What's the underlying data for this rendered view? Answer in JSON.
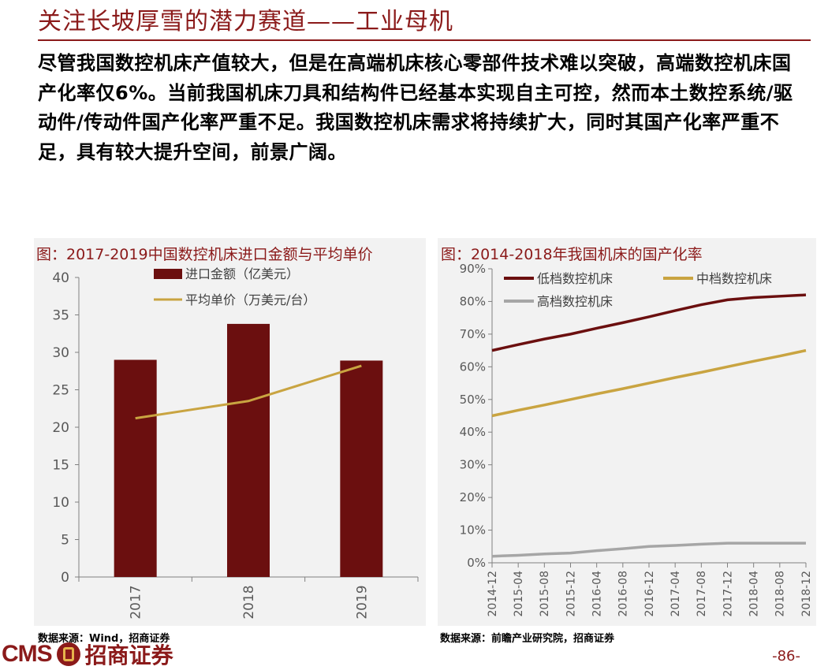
{
  "header": {
    "title": "关注长坡厚雪的潜力赛道——工业母机"
  },
  "body": {
    "paragraph": "尽管我国数控机床产值较大，但是在高端机床核心零部件技术难以突破，高端数控机床国产化率仅6%。当前我国机床刀具和结构件已经基本实现自主可控，然而本土数控系统/驱动件/传动件国产化率严重不足。我国数控机床需求将持续扩大，同时其国产化率严重不足，具有较大提升空间，前景广阔。"
  },
  "left_chart": {
    "title": "图：2017-2019中国数控机床进口金额与平均单价",
    "source": "数据来源：Wind，招商证券"
  },
  "right_chart": {
    "title": "图：2014-2018年我国机床的国产化率",
    "source": "数据来源：前瞻产业研究院，招商证券"
  },
  "footer": {
    "logo_text": "CMS",
    "logo_cn": "招商证券",
    "page_number": "-86-"
  },
  "colors": {
    "brand": "#8b1a1a",
    "gold": "#c9a441",
    "gray": "#a6a6a6",
    "panel": "#f2f2f2"
  },
  "chart_data": [
    {
      "type": "bar",
      "categories": [
        "2017",
        "2018",
        "2019"
      ],
      "series": [
        {
          "name": "进口金额（亿美元）",
          "kind": "bar",
          "color": "#6b0f0f",
          "values": [
            29.0,
            33.8,
            28.9
          ]
        },
        {
          "name": "平均单价（万美元/台）",
          "kind": "line",
          "color": "#c9a441",
          "values": [
            21.2,
            23.5,
            28.2
          ]
        }
      ],
      "ylim": [
        0,
        40
      ],
      "yticks": [
        0,
        5,
        10,
        15,
        20,
        25,
        30,
        35,
        40
      ],
      "legend": "top-center",
      "grid": false
    },
    {
      "type": "line",
      "x": [
        "2014-12",
        "2015-04",
        "2015-08",
        "2015-12",
        "2016-04",
        "2016-08",
        "2016-12",
        "2017-04",
        "2017-08",
        "2017-12",
        "2018-04",
        "2018-08",
        "2018-12"
      ],
      "series": [
        {
          "name": "低档数控机床",
          "color": "#6b0f0f",
          "values": [
            65,
            66.8,
            68.5,
            70,
            71.8,
            73.5,
            75.3,
            77.2,
            79,
            80.5,
            81.2,
            81.6,
            82
          ]
        },
        {
          "name": "中档数控机床",
          "color": "#c9a441",
          "values": [
            45,
            46.7,
            48.3,
            50,
            51.7,
            53.3,
            55,
            56.7,
            58.3,
            60,
            61.7,
            63.3,
            65
          ]
        },
        {
          "name": "高档数控机床",
          "color": "#a6a6a6",
          "values": [
            2,
            2.3,
            2.7,
            3,
            3.7,
            4.3,
            5,
            5.3,
            5.7,
            6,
            6,
            6,
            6
          ]
        }
      ],
      "ylim": [
        0,
        90
      ],
      "yticks": [
        "0%",
        "10%",
        "20%",
        "30%",
        "40%",
        "50%",
        "60%",
        "70%",
        "80%",
        "90%"
      ],
      "ytick_values": [
        0,
        10,
        20,
        30,
        40,
        50,
        60,
        70,
        80,
        90
      ],
      "legend": "top-left",
      "grid": false
    }
  ]
}
